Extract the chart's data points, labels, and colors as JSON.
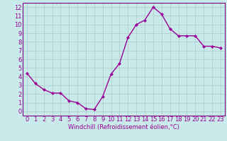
{
  "x": [
    0,
    1,
    2,
    3,
    4,
    5,
    6,
    7,
    8,
    9,
    10,
    11,
    12,
    13,
    14,
    15,
    16,
    17,
    18,
    19,
    20,
    21,
    22,
    23
  ],
  "y": [
    4.4,
    3.2,
    2.5,
    2.1,
    2.1,
    1.2,
    1.0,
    0.3,
    0.2,
    1.7,
    4.3,
    5.5,
    8.5,
    10.0,
    10.5,
    12.0,
    11.2,
    9.5,
    8.7,
    8.7,
    8.7,
    7.5,
    7.5,
    7.3
  ],
  "line_color": "#990099",
  "marker": "D",
  "markersize": 2,
  "linewidth": 1,
  "xlabel": "Windchill (Refroidissement éolien,°C)",
  "xlabel_fontsize": 6,
  "xlim": [
    -0.5,
    23.5
  ],
  "ylim": [
    -0.5,
    12.5
  ],
  "yticks": [
    0,
    1,
    2,
    3,
    4,
    5,
    6,
    7,
    8,
    9,
    10,
    11,
    12
  ],
  "xticks": [
    0,
    1,
    2,
    3,
    4,
    5,
    6,
    7,
    8,
    9,
    10,
    11,
    12,
    13,
    14,
    15,
    16,
    17,
    18,
    19,
    20,
    21,
    22,
    23
  ],
  "background_color": "#c8eaea",
  "grid_color": "#b0c8c8",
  "tick_labelsize": 6,
  "spine_color": "#800080"
}
